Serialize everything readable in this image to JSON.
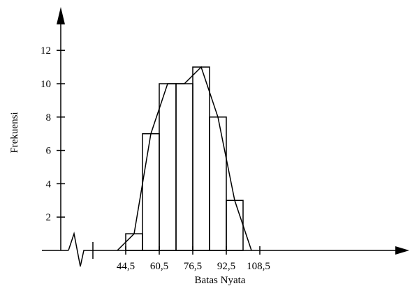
{
  "chart_data": {
    "type": "bar",
    "subtype": "histogram-with-frequency-polygon",
    "xlabel": "Batas Nyata",
    "ylabel": "Frekuensi",
    "x_tick_labels": [
      "44,5",
      "60,5",
      "76,5",
      "92,5",
      "108,5"
    ],
    "x_tick_values": [
      44.5,
      60.5,
      76.5,
      92.5,
      108.5
    ],
    "y_tick_labels": [
      "2",
      "4",
      "6",
      "8",
      "10",
      "12"
    ],
    "y_tick_values": [
      2,
      4,
      6,
      8,
      10,
      12
    ],
    "xlim": [
      36.5,
      116.5
    ],
    "ylim": [
      0,
      13
    ],
    "x_axis_break": true,
    "bins": [
      {
        "lower": 44.5,
        "upper": 52.5,
        "value": 1
      },
      {
        "lower": 52.5,
        "upper": 60.5,
        "value": 7
      },
      {
        "lower": 60.5,
        "upper": 68.5,
        "value": 10
      },
      {
        "lower": 68.5,
        "upper": 76.5,
        "value": 10
      },
      {
        "lower": 76.5,
        "upper": 84.5,
        "value": 11
      },
      {
        "lower": 84.5,
        "upper": 92.5,
        "value": 8
      },
      {
        "lower": 92.5,
        "upper": 100.5,
        "value": 3
      }
    ],
    "polygon": {
      "x": [
        40.5,
        48.5,
        56.5,
        64.5,
        72.5,
        80.5,
        88.5,
        96.5,
        104.5
      ],
      "y": [
        0,
        1,
        7,
        10,
        10,
        11,
        8,
        3,
        0
      ]
    },
    "grid": false,
    "legend": "none"
  }
}
